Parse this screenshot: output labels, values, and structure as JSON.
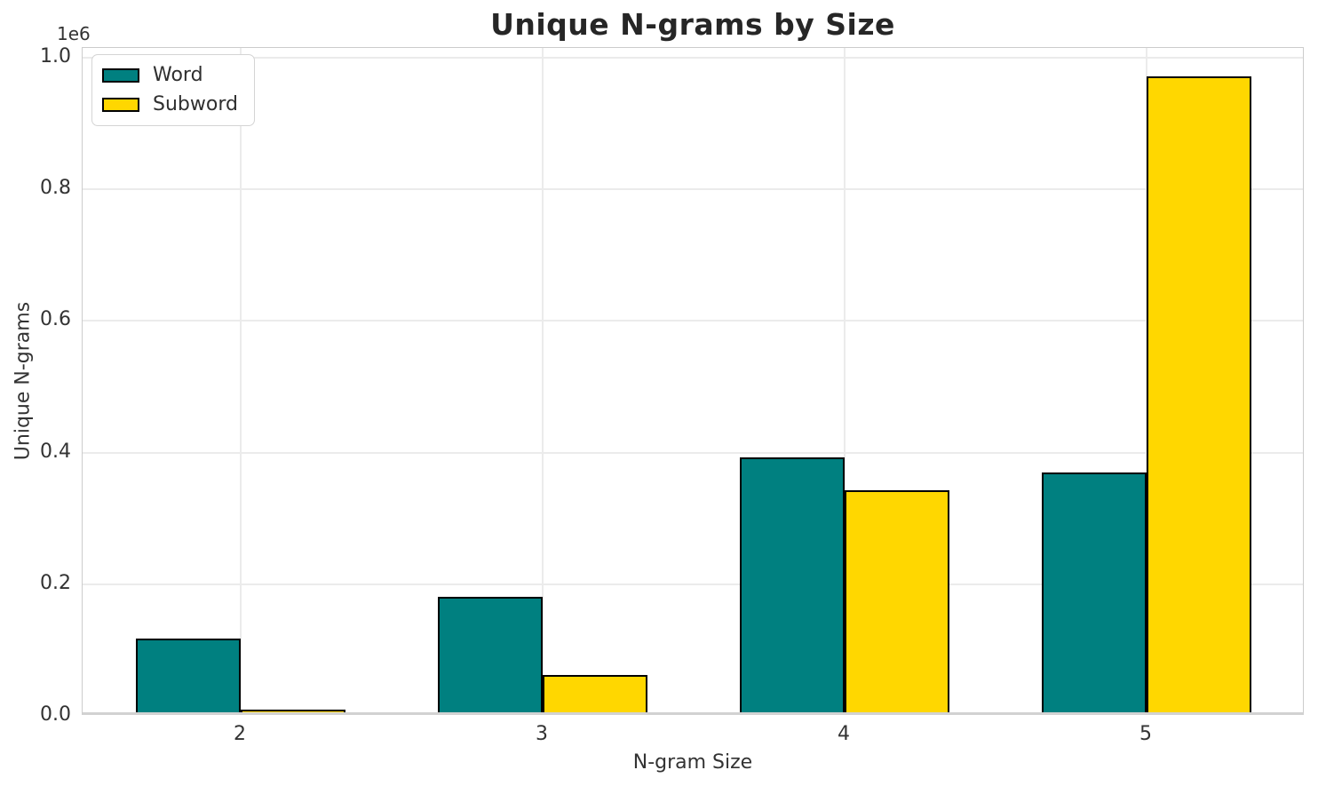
{
  "title": "Unique N-grams by Size",
  "axes": {
    "x_label": "N-gram Size",
    "y_label": "Unique N-grams",
    "y_offset_text": "1e6"
  },
  "legend": {
    "position": "upper left",
    "items": [
      {
        "label": "Word",
        "color": "#008080"
      },
      {
        "label": "Subword",
        "color": "#FFD700"
      }
    ]
  },
  "chart_data": {
    "type": "bar",
    "title": "Unique N-grams by Size",
    "xlabel": "N-gram Size",
    "ylabel": "Unique N-grams",
    "y_offset_text": "1e6",
    "categories": [
      "2",
      "3",
      "4",
      "5"
    ],
    "series": [
      {
        "name": "Word",
        "color": "#008080",
        "values": [
          112000,
          176000,
          387000,
          364000
        ]
      },
      {
        "name": "Subword",
        "color": "#FFD700",
        "values": [
          4500,
          57000,
          338000,
          966000
        ]
      }
    ],
    "ylim": [
      0,
      1015000
    ],
    "yticks": [
      0,
      200000,
      400000,
      600000,
      800000,
      1000000
    ],
    "ytick_labels": [
      "0.0",
      "0.2",
      "0.4",
      "0.6",
      "0.8",
      "1.0"
    ],
    "grid": true,
    "legend_position": "upper left",
    "bar_edge_color": "#000000",
    "bar_group_width_fraction": 0.7
  }
}
